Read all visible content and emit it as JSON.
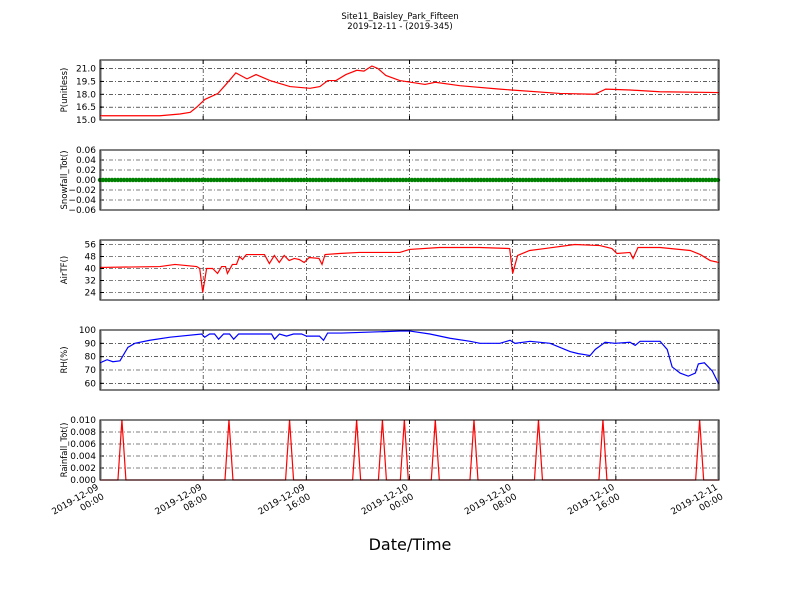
{
  "chart_data": {
    "type": "line",
    "title": "Site11_Baisley_Park_Fifteen",
    "subtitle": "2019-12-11 - (2019-345)",
    "xlabel": "Date/Time",
    "xlim": [
      "2019-12-09 00:00",
      "2019-12-11 00:00"
    ],
    "xticks": [
      "2019-12-09 00:00",
      "2019-12-09 08:00",
      "2019-12-09 16:00",
      "2019-12-10 00:00",
      "2019-12-10 08:00",
      "2019-12-10 16:00",
      "2019-12-11 00:00"
    ],
    "xtick_labels": [
      [
        "2019-12-09",
        "00:00"
      ],
      [
        "2019-12-09",
        "08:00"
      ],
      [
        "2019-12-09",
        "16:00"
      ],
      [
        "2019-12-10",
        "00:00"
      ],
      [
        "2019-12-10",
        "08:00"
      ],
      [
        "2019-12-10",
        "16:00"
      ],
      [
        "2019-12-11",
        "00:00"
      ]
    ],
    "grid": true,
    "panels": [
      {
        "ylabel": "P(unitless)",
        "color": "#ff0000",
        "ylim": [
          15,
          22
        ],
        "yticks": [
          15.0,
          16.5,
          18.0,
          19.5,
          21.0
        ],
        "ytick_labels": [
          "15.0",
          "16.5",
          "18.0",
          "19.5",
          "21.0"
        ],
        "points": [
          [
            "2019-12-09 00:00",
            15.5
          ],
          [
            "2019-12-09 04:39",
            15.5
          ],
          [
            "2019-12-09 06:12",
            15.7
          ],
          [
            "2019-12-09 07:00",
            15.9
          ],
          [
            "2019-12-09 07:30",
            16.5
          ],
          [
            "2019-12-09 08:08",
            17.4
          ],
          [
            "2019-12-09 09:09",
            18.1
          ],
          [
            "2019-12-09 09:46",
            19.15
          ],
          [
            "2019-12-09 10:32",
            20.5
          ],
          [
            "2019-12-09 11:24",
            19.8
          ],
          [
            "2019-12-09 12:06",
            20.3
          ],
          [
            "2019-12-09 13:11",
            19.6
          ],
          [
            "2019-12-09 14:44",
            18.9
          ],
          [
            "2019-12-09 16:17",
            18.7
          ],
          [
            "2019-12-09 17:03",
            18.9
          ],
          [
            "2019-12-09 17:40",
            19.6
          ],
          [
            "2019-12-09 18:18",
            19.6
          ],
          [
            "2019-12-09 19:04",
            20.3
          ],
          [
            "2019-12-09 19:55",
            20.8
          ],
          [
            "2019-12-09 20:28",
            20.7
          ],
          [
            "2019-12-09 21:05",
            21.3
          ],
          [
            "2019-12-09 21:33",
            21.0
          ],
          [
            "2019-12-09 22:10",
            20.2
          ],
          [
            "2019-12-09 23:15",
            19.6
          ],
          [
            "2019-12-10 01:12",
            19.15
          ],
          [
            "2019-12-10 02:00",
            19.4
          ],
          [
            "2019-12-10 03:54",
            19.0
          ],
          [
            "2019-12-10 07:00",
            18.6
          ],
          [
            "2019-12-10 11:40",
            18.1
          ],
          [
            "2019-12-10 14:22",
            18.0
          ],
          [
            "2019-12-10 15:13",
            18.6
          ],
          [
            "2019-12-10 17:06",
            18.5
          ],
          [
            "2019-12-10 19:24",
            18.3
          ],
          [
            "2019-12-11 00:00",
            18.2
          ]
        ]
      },
      {
        "ylabel": "Snowfall_Tot()",
        "color": "#008000",
        "marker": true,
        "ylim": [
          -0.06,
          0.06
        ],
        "yticks": [
          -0.06,
          -0.04,
          -0.02,
          0,
          0.02,
          0.04,
          0.06
        ],
        "ytick_labels": [
          "−0.06",
          "−0.04",
          "−0.02",
          "0.00",
          "0.02",
          "0.04",
          "0.06"
        ],
        "constant_value": 0
      },
      {
        "ylabel": "AirTF()",
        "color": "#ff0000",
        "ylim": [
          19,
          59
        ],
        "yticks": [
          24,
          32,
          40,
          48,
          56
        ],
        "ytick_labels": [
          "24",
          "32",
          "40",
          "48",
          "56"
        ],
        "points": [
          [
            "2019-12-09 00:00",
            40.7
          ],
          [
            "2019-12-09 04:39",
            41.3
          ],
          [
            "2019-12-09 05:49",
            42.7
          ],
          [
            "2019-12-09 07:30",
            41.3
          ],
          [
            "2019-12-09 07:44",
            40
          ],
          [
            "2019-12-09 07:58",
            24
          ],
          [
            "2019-12-09 08:16",
            40
          ],
          [
            "2019-12-09 08:44",
            40
          ],
          [
            "2019-12-09 09:07",
            36.7
          ],
          [
            "2019-12-09 09:26",
            41.3
          ],
          [
            "2019-12-09 09:44",
            41.3
          ],
          [
            "2019-12-09 09:53",
            36.7
          ],
          [
            "2019-12-09 10:16",
            42.7
          ],
          [
            "2019-12-09 10:35",
            42.7
          ],
          [
            "2019-12-09 10:49",
            48
          ],
          [
            "2019-12-09 11:03",
            46
          ],
          [
            "2019-12-09 11:21",
            49.3
          ],
          [
            "2019-12-09 11:45",
            49.3
          ],
          [
            "2019-12-09 12:45",
            49.3
          ],
          [
            "2019-12-09 13:08",
            43.3
          ],
          [
            "2019-12-09 13:31",
            48.7
          ],
          [
            "2019-12-09 13:54",
            44
          ],
          [
            "2019-12-09 14:17",
            48.7
          ],
          [
            "2019-12-09 14:40",
            45.3
          ],
          [
            "2019-12-09 15:04",
            46.7
          ],
          [
            "2019-12-09 15:27",
            46
          ],
          [
            "2019-12-09 15:50",
            44
          ],
          [
            "2019-12-09 16:13",
            47.3
          ],
          [
            "2019-12-09 16:59",
            46.7
          ],
          [
            "2019-12-09 17:13",
            42.7
          ],
          [
            "2019-12-09 17:27",
            49.3
          ],
          [
            "2019-12-09 18:33",
            50
          ],
          [
            "2019-12-09 20:06",
            50.7
          ],
          [
            "2019-12-09 23:15",
            50.7
          ],
          [
            "2019-12-10 00:00",
            52.7
          ],
          [
            "2019-12-10 02:20",
            54
          ],
          [
            "2019-12-10 05:26",
            54
          ],
          [
            "2019-12-10 07:46",
            53.3
          ],
          [
            "2019-12-10 08:00",
            36.7
          ],
          [
            "2019-12-10 08:23",
            48.7
          ],
          [
            "2019-12-10 09:19",
            52
          ],
          [
            "2019-12-10 10:29",
            53.3
          ],
          [
            "2019-12-10 12:49",
            56
          ],
          [
            "2019-12-10 14:46",
            55.3
          ],
          [
            "2019-12-10 15:42",
            53.3
          ],
          [
            "2019-12-10 16:05",
            50
          ],
          [
            "2019-12-10 17:06",
            50.7
          ],
          [
            "2019-12-10 17:20",
            46.7
          ],
          [
            "2019-12-10 17:43",
            54
          ],
          [
            "2019-12-10 19:26",
            54
          ],
          [
            "2019-12-10 21:46",
            52
          ],
          [
            "2019-12-10 22:33",
            49.3
          ],
          [
            "2019-12-10 23:19",
            45.3
          ],
          [
            "2019-12-11 00:00",
            44
          ]
        ]
      },
      {
        "ylabel": "RH(%)",
        "color": "#0000ff",
        "ylim": [
          55,
          100
        ],
        "yticks": [
          60,
          70,
          80,
          90,
          100
        ],
        "ytick_labels": [
          "60",
          "70",
          "80",
          "90",
          "100"
        ],
        "points": [
          [
            "2019-12-09 00:00",
            75.4
          ],
          [
            "2019-12-09 00:33",
            77.7
          ],
          [
            "2019-12-09 01:00",
            76.2
          ],
          [
            "2019-12-09 01:33",
            76.9
          ],
          [
            "2019-12-09 02:10",
            87
          ],
          [
            "2019-12-09 02:42",
            90
          ],
          [
            "2019-12-09 03:52",
            92.3
          ],
          [
            "2019-12-09 05:26",
            94.6
          ],
          [
            "2019-12-09 07:53",
            97
          ],
          [
            "2019-12-09 08:07",
            94.6
          ],
          [
            "2019-12-09 08:30",
            97
          ],
          [
            "2019-12-09 08:53",
            97
          ],
          [
            "2019-12-09 09:12",
            93.1
          ],
          [
            "2019-12-09 09:35",
            97
          ],
          [
            "2019-12-09 10:03",
            97
          ],
          [
            "2019-12-09 10:22",
            93.1
          ],
          [
            "2019-12-09 10:45",
            97
          ],
          [
            "2019-12-09 11:45",
            97
          ],
          [
            "2019-12-09 13:18",
            97
          ],
          [
            "2019-12-09 13:32",
            93.1
          ],
          [
            "2019-12-09 13:55",
            97
          ],
          [
            "2019-12-09 14:28",
            95.4
          ],
          [
            "2019-12-09 15:00",
            97
          ],
          [
            "2019-12-09 15:38",
            97
          ],
          [
            "2019-12-09 16:01",
            95.4
          ],
          [
            "2019-12-09 17:01",
            95.4
          ],
          [
            "2019-12-09 17:20",
            92.3
          ],
          [
            "2019-12-09 17:39",
            97.7
          ],
          [
            "2019-12-09 18:44",
            97.7
          ],
          [
            "2019-12-09 23:15",
            99.2
          ],
          [
            "2019-12-10 00:02",
            99.2
          ],
          [
            "2019-12-10 01:35",
            97
          ],
          [
            "2019-12-10 03:08",
            93.8
          ],
          [
            "2019-12-10 04:42",
            91.5
          ],
          [
            "2019-12-10 05:28",
            90
          ],
          [
            "2019-12-10 07:01",
            90
          ],
          [
            "2019-12-10 07:48",
            92.3
          ],
          [
            "2019-12-10 08:11",
            90
          ],
          [
            "2019-12-10 09:21",
            91.5
          ],
          [
            "2019-12-10 10:54",
            90
          ],
          [
            "2019-12-10 12:27",
            83.8
          ],
          [
            "2019-12-10 13:05",
            82.3
          ],
          [
            "2019-12-10 13:37",
            81.5
          ],
          [
            "2019-12-10 14:00",
            80.8
          ],
          [
            "2019-12-10 14:24",
            85.4
          ],
          [
            "2019-12-10 15:10",
            90.8
          ],
          [
            "2019-12-10 15:57",
            90
          ],
          [
            "2019-12-10 17:06",
            90.8
          ],
          [
            "2019-12-10 17:30",
            88.5
          ],
          [
            "2019-12-10 17:53",
            91.5
          ],
          [
            "2019-12-10 19:26",
            91.5
          ],
          [
            "2019-12-10 19:59",
            85.4
          ],
          [
            "2019-12-10 20:22",
            72.3
          ],
          [
            "2019-12-10 20:59",
            67.7
          ],
          [
            "2019-12-10 21:37",
            65.4
          ],
          [
            "2019-12-10 22:10",
            67.7
          ],
          [
            "2019-12-10 22:24",
            74.6
          ],
          [
            "2019-12-10 22:52",
            75.4
          ],
          [
            "2019-12-10 23:29",
            69.2
          ],
          [
            "2019-12-11 00:00",
            59.2
          ]
        ]
      },
      {
        "ylabel": "Rainfall_Tot()",
        "color": "#ff0000",
        "ylim": [
          0,
          0.01
        ],
        "yticks": [
          0,
          0.002,
          0.004,
          0.006,
          0.008,
          0.01
        ],
        "ytick_labels": [
          "0.000",
          "0.002",
          "0.004",
          "0.006",
          "0.008",
          "0.010"
        ],
        "baseline": 0,
        "spike_value": 0.01,
        "spike_times": [
          "2019-12-09 01:42",
          "2019-12-09 10:00",
          "2019-12-09 14:42",
          "2019-12-09 19:54",
          "2019-12-09 21:54",
          "2019-12-09 23:36",
          "2019-12-10 02:00",
          "2019-12-10 05:00",
          "2019-12-10 10:00",
          "2019-12-10 15:00",
          "2019-12-10 22:30"
        ]
      }
    ]
  }
}
